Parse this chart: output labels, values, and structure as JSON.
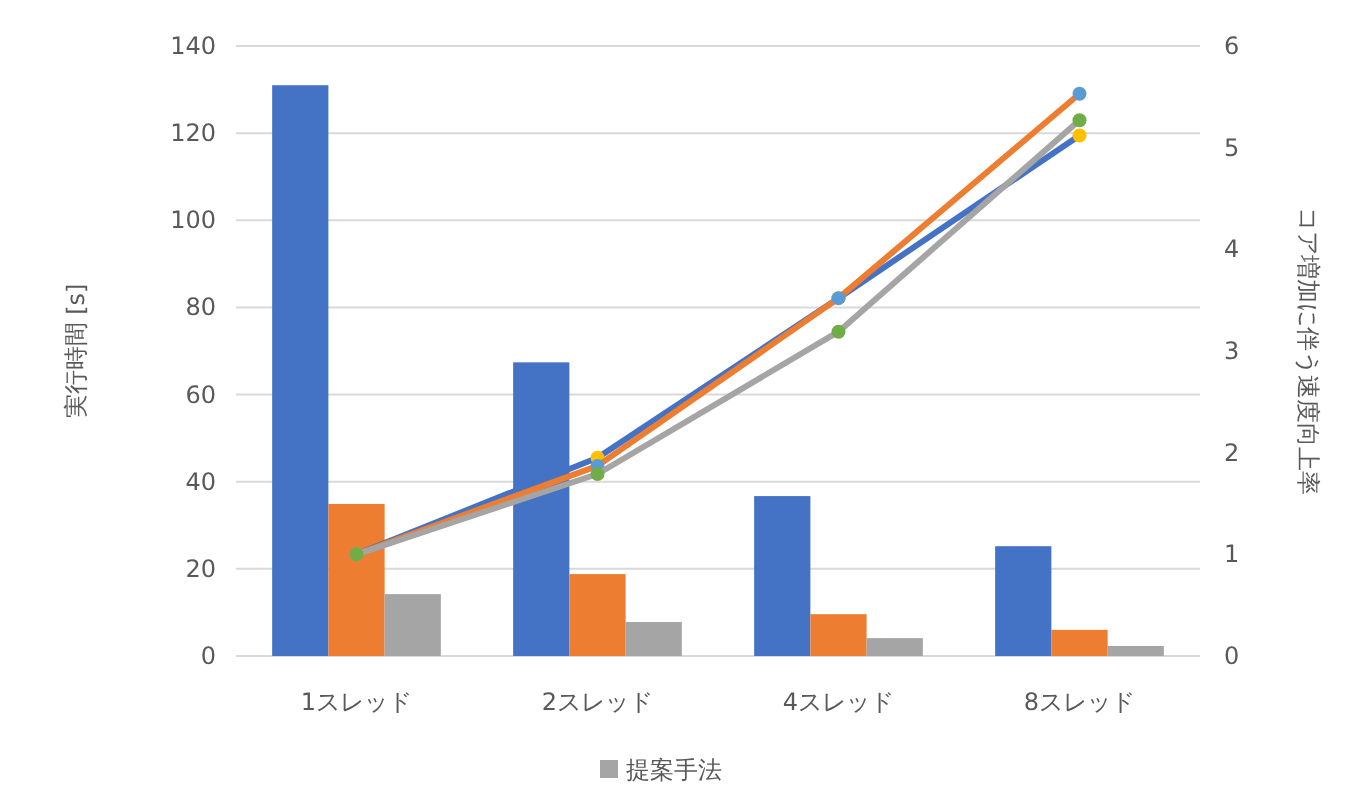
{
  "chart_data": {
    "type": "bar",
    "categories": [
      "1スレッド",
      "2スレッド",
      "4スレッド",
      "8スレッド"
    ],
    "ylabel": "実行時間 [s]",
    "y2label": "コア増加に伴う速度向上率",
    "ylim": [
      0,
      140
    ],
    "yticks": [
      0,
      20,
      40,
      60,
      80,
      100,
      120,
      140
    ],
    "y2lim": [
      0,
      6
    ],
    "y2ticks": [
      0,
      1,
      2,
      3,
      4,
      5,
      6
    ],
    "grid": "y",
    "legend": "bottom",
    "series": [
      {
        "color": "#4472c4",
        "values": [
          131,
          67.4,
          36.7,
          25.2
        ]
      },
      {
        "color": "#ed7d31",
        "values": [
          34.9,
          18.8,
          9.6,
          6.0
        ]
      },
      {
        "name": "提案手法",
        "color": "#a5a5a5",
        "values": [
          14.2,
          7.8,
          4.1,
          2.3
        ]
      },
      {
        "type": "line",
        "axis": "y2",
        "marker": "circle",
        "color": "#4472c4",
        "colors": [
          "#ffc000",
          "#ffc000",
          "#ffc000",
          "#ffc000"
        ],
        "values": [
          1.0,
          1.95,
          3.52,
          5.12
        ]
      },
      {
        "type": "line",
        "axis": "y2",
        "marker": "circle",
        "color": "#ed7d31",
        "colors": [
          "#5b9bd5",
          "#5b9bd5",
          "#5b9bd5",
          "#5b9bd5"
        ],
        "values": [
          1.0,
          1.87,
          3.52,
          5.53
        ]
      },
      {
        "type": "line",
        "axis": "y2",
        "marker": "circle",
        "color": "#a5a5a5",
        "colors": [
          "#70ad47",
          "#70ad47",
          "#70ad47",
          "#70ad47"
        ],
        "values": [
          1.0,
          1.79,
          3.19,
          5.27
        ]
      }
    ]
  }
}
